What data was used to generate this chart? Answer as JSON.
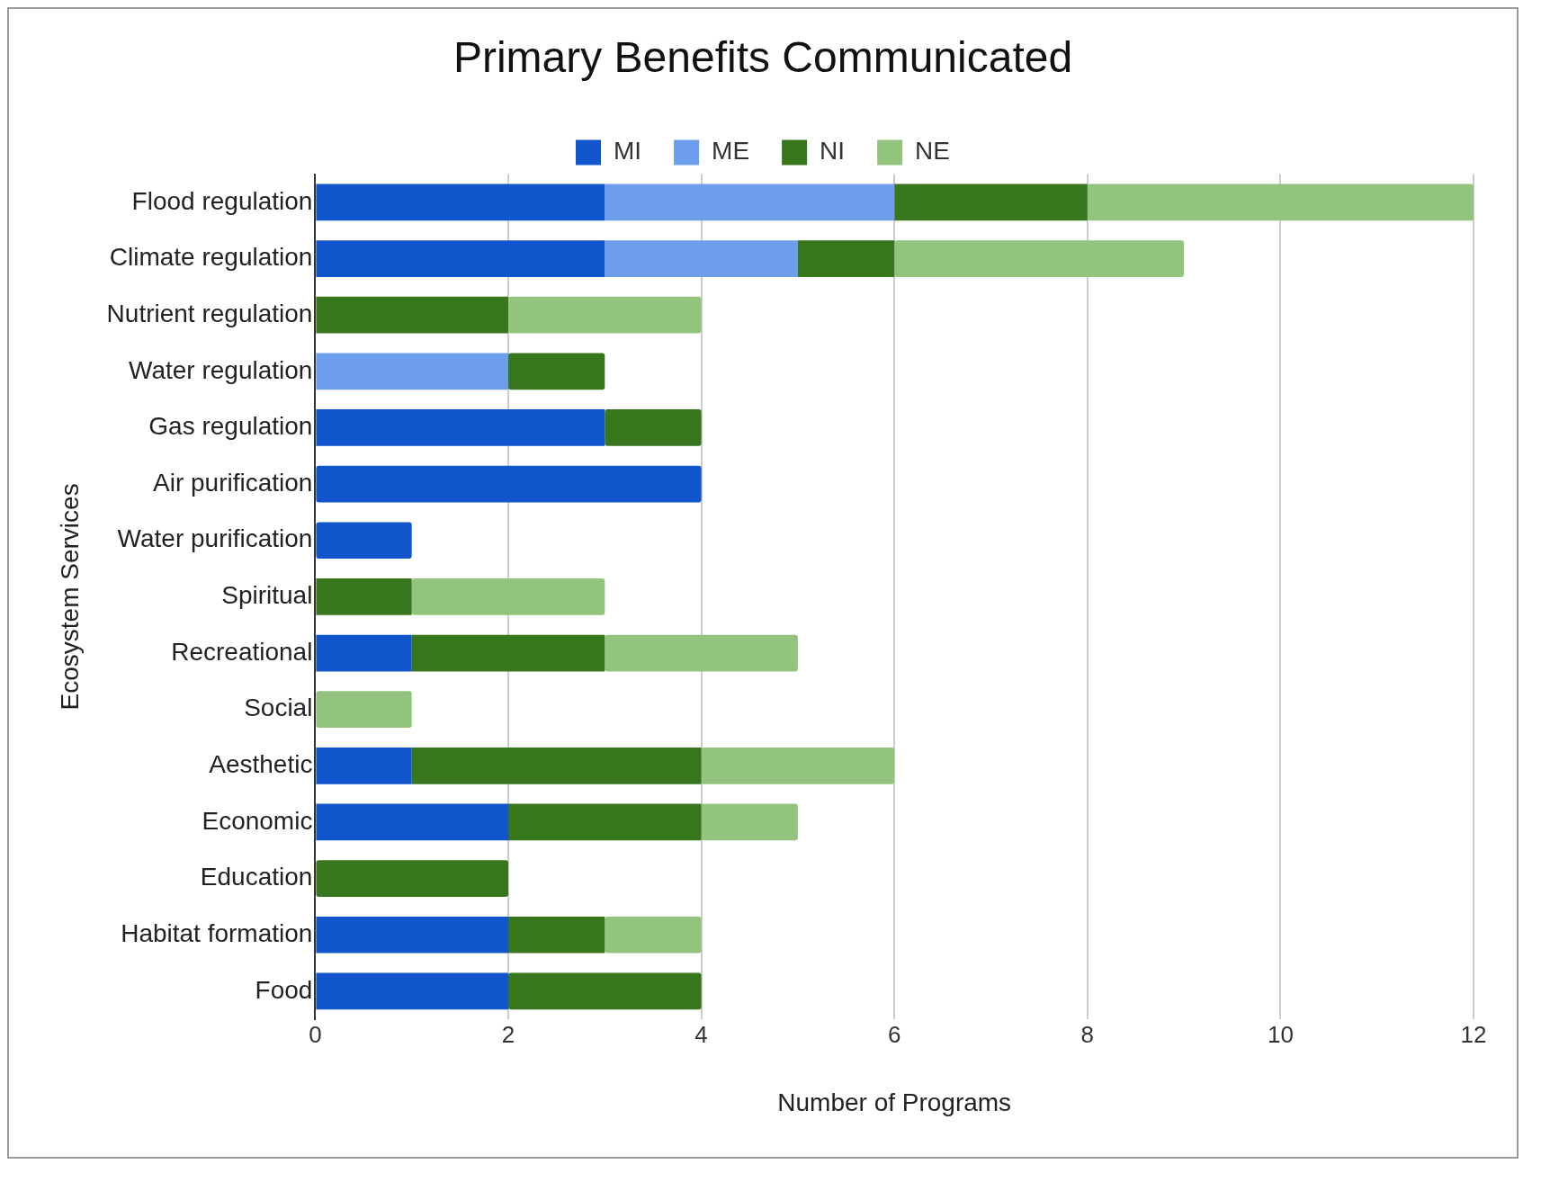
{
  "chart_data": {
    "type": "bar",
    "orientation": "horizontal",
    "stacked": true,
    "title": "Primary Benefits Communicated",
    "xlabel": "Number of Programs",
    "ylabel": "Ecosystem Services",
    "categories": [
      "Flood regulation",
      "Climate regulation",
      "Nutrient regulation",
      "Water regulation",
      "Gas regulation",
      "Air purification",
      "Water purification",
      "Spiritual",
      "Recreational",
      "Social",
      "Aesthetic",
      "Economic",
      "Education",
      "Habitat formation",
      "Food"
    ],
    "series": [
      {
        "name": "MI",
        "color": "#1155cc",
        "values": [
          3,
          3,
          0,
          0,
          3,
          4,
          1,
          0,
          1,
          0,
          1,
          2,
          0,
          2,
          2
        ]
      },
      {
        "name": "ME",
        "color": "#6d9eeb",
        "values": [
          3,
          2,
          0,
          2,
          0,
          0,
          0,
          0,
          0,
          0,
          0,
          0,
          0,
          0,
          0
        ]
      },
      {
        "name": "NI",
        "color": "#38761d",
        "values": [
          2,
          1,
          2,
          1,
          1,
          0,
          0,
          1,
          2,
          0,
          3,
          2,
          2,
          1,
          2
        ]
      },
      {
        "name": "NE",
        "color": "#93c47d",
        "values": [
          4,
          3,
          2,
          0,
          0,
          0,
          0,
          2,
          2,
          1,
          2,
          1,
          0,
          1,
          0
        ]
      }
    ],
    "xlim": [
      0,
      12
    ],
    "xticks": [
      0,
      2,
      4,
      6,
      8,
      10,
      12
    ],
    "grid": "x",
    "legend": "top"
  }
}
